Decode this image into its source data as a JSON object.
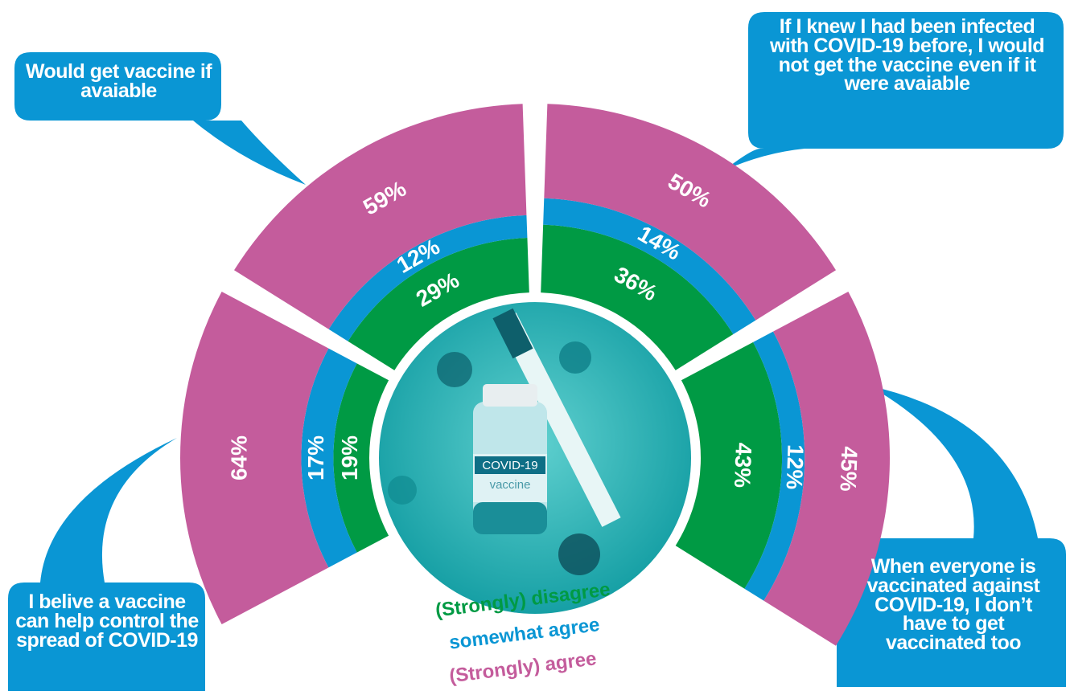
{
  "chart_data": {
    "type": "radial-stack",
    "categories": [
      "I belive a vaccine can help control the spread of COVID-19",
      "Would get vaccine if avaiable",
      "If I knew I had been infected with COVID-19 before, I would not get the vaccine even if it were avaiable",
      "When everyone is vaccinated against COVID-19, I don’t have to get vaccinated too"
    ],
    "series": [
      {
        "name": "(Strongly) disagree",
        "color": "#009a44",
        "values": [
          19,
          29,
          36,
          43
        ],
        "value_labels": [
          "19%",
          "29%",
          "36%",
          "43%"
        ]
      },
      {
        "name": "somewhat agree",
        "color": "#0a96d4",
        "values": [
          17,
          12,
          14,
          12
        ],
        "value_labels": [
          "17%",
          "12%",
          "14%",
          "12%"
        ]
      },
      {
        "name": "(Strongly) agree",
        "color": "#c45c9c",
        "values": [
          64,
          59,
          50,
          45
        ],
        "value_labels": [
          "64%",
          "59%",
          "50%",
          "45%"
        ]
      }
    ]
  },
  "illustration": {
    "label": "COVID-19",
    "sublabel": "vaccine"
  }
}
